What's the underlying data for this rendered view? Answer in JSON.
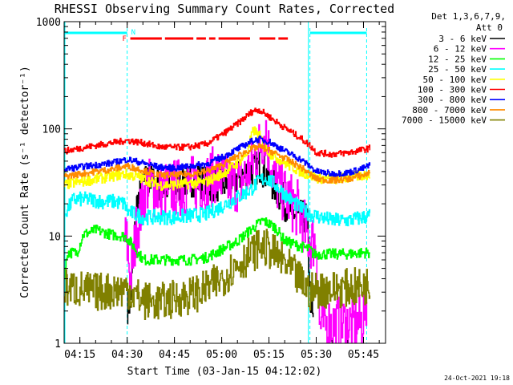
{
  "chart_data": {
    "type": "line",
    "title": "RHESSI Observing Summary Count Rates, Corrected",
    "xlabel": "Start Time (03-Jan-15 04:12:02)",
    "ylabel": "Corrected Count Rate (s⁻¹ detector⁻¹)",
    "y_scale": "log",
    "ylim": [
      1,
      1000
    ],
    "xlim": [
      "04:10",
      "05:52"
    ],
    "x_ticks": [
      "04:15",
      "04:30",
      "04:45",
      "05:00",
      "05:15",
      "05:30",
      "05:45"
    ],
    "y_ticks": [
      "1",
      "10",
      "100",
      "1000"
    ],
    "legend_header": [
      "Det 1,3,6,7,9,",
      "Att 0"
    ],
    "legend_position": "right-outside",
    "footer_date": "24-Oct-2021 19:18",
    "flags": {
      "night_label": "N",
      "flare_label": "F",
      "night_color": "#00ffff",
      "flare_color": "#ff0000",
      "night_intervals": [
        [
          "04:10",
          "04:30"
        ],
        [
          "05:28",
          "05:46"
        ]
      ],
      "night_boundaries": [
        "04:30",
        "05:28",
        "05:46"
      ],
      "flare_segments": [
        [
          "04:31",
          "04:41"
        ],
        [
          "04:42",
          "04:51"
        ],
        [
          "04:52",
          "04:55"
        ],
        [
          "04:56",
          "04:58"
        ],
        [
          "04:59",
          "05:09"
        ],
        [
          "05:12",
          "05:17"
        ],
        [
          "05:18",
          "05:21"
        ]
      ]
    },
    "series": [
      {
        "name": "3 - 6 keV",
        "color": "#000000",
        "noise": 0.16,
        "points": [
          [
            "04:30",
            2.2
          ],
          [
            "04:31",
            2.5
          ],
          [
            "04:33",
            20
          ],
          [
            "04:36",
            34
          ],
          [
            "04:40",
            30
          ],
          [
            "04:45",
            27
          ],
          [
            "04:48",
            32
          ],
          [
            "04:52",
            34
          ],
          [
            "04:56",
            30
          ],
          [
            "05:00",
            30
          ],
          [
            "05:03",
            32
          ],
          [
            "05:07",
            38
          ],
          [
            "05:10",
            42
          ],
          [
            "05:12",
            45
          ],
          [
            "05:14",
            38
          ],
          [
            "05:17",
            28
          ],
          [
            "05:20",
            20
          ],
          [
            "05:24",
            15
          ],
          [
            "05:27",
            15
          ],
          [
            "05:28",
            3
          ],
          [
            "05:29",
            1.5
          ]
        ]
      },
      {
        "name": "6 - 12 keV",
        "color": "#ff00ff",
        "noise": 0.28,
        "points": [
          [
            "04:29",
            10
          ],
          [
            "04:30",
            8
          ],
          [
            "04:31",
            4
          ],
          [
            "04:33",
            12
          ],
          [
            "04:36",
            30
          ],
          [
            "04:40",
            26
          ],
          [
            "04:45",
            28
          ],
          [
            "04:50",
            30
          ],
          [
            "04:55",
            32
          ],
          [
            "04:58",
            38
          ],
          [
            "05:02",
            30
          ],
          [
            "05:06",
            32
          ],
          [
            "05:09",
            42
          ],
          [
            "05:11",
            60
          ],
          [
            "05:13",
            80
          ],
          [
            "05:14",
            100
          ],
          [
            "05:15",
            55
          ],
          [
            "05:17",
            32
          ],
          [
            "05:20",
            24
          ],
          [
            "05:24",
            18
          ],
          [
            "05:27",
            10
          ],
          [
            "05:28",
            9
          ],
          [
            "05:30",
            9
          ],
          [
            "05:31",
            1.5
          ],
          [
            "05:44",
            1.5
          ],
          [
            "05:46",
            2.5
          ]
        ]
      },
      {
        "name": "12 - 25 keV",
        "color": "#00ff00",
        "noise": 0.05,
        "points": [
          [
            "04:10",
            4
          ],
          [
            "04:11",
            7
          ],
          [
            "04:14",
            7
          ],
          [
            "04:16",
            10.3
          ],
          [
            "04:20",
            11.4
          ],
          [
            "04:25",
            10.3
          ],
          [
            "04:29",
            10
          ],
          [
            "04:30",
            9.5
          ],
          [
            "04:32",
            8
          ],
          [
            "04:35",
            6
          ],
          [
            "04:45",
            6
          ],
          [
            "04:50",
            6
          ],
          [
            "04:55",
            6.3
          ],
          [
            "05:00",
            7.5
          ],
          [
            "05:05",
            9
          ],
          [
            "05:10",
            12
          ],
          [
            "05:13",
            14
          ],
          [
            "05:15",
            13
          ],
          [
            "05:17",
            12
          ],
          [
            "05:20",
            9
          ],
          [
            "05:25",
            8
          ],
          [
            "05:28",
            7.5
          ],
          [
            "05:29",
            6.8
          ],
          [
            "05:35",
            6.8
          ],
          [
            "05:40",
            6.8
          ],
          [
            "05:45",
            7
          ],
          [
            "05:47",
            7
          ]
        ]
      },
      {
        "name": "25 - 50 keV",
        "color": "#00ffff",
        "noise": 0.07,
        "points": [
          [
            "04:10",
            16
          ],
          [
            "04:13",
            22
          ],
          [
            "04:18",
            22
          ],
          [
            "04:22",
            21
          ],
          [
            "04:26",
            21
          ],
          [
            "04:29",
            20
          ],
          [
            "04:30",
            17
          ],
          [
            "04:35",
            15
          ],
          [
            "04:40",
            15
          ],
          [
            "04:45",
            15
          ],
          [
            "04:50",
            15.5
          ],
          [
            "04:55",
            16
          ],
          [
            "05:00",
            19
          ],
          [
            "05:05",
            23
          ],
          [
            "05:09",
            27
          ],
          [
            "05:12",
            33
          ],
          [
            "05:14",
            35
          ],
          [
            "05:17",
            30
          ],
          [
            "05:21",
            23
          ],
          [
            "05:25",
            18
          ],
          [
            "05:28",
            16
          ],
          [
            "05:35",
            14
          ],
          [
            "05:40",
            14
          ],
          [
            "05:45",
            15
          ],
          [
            "05:47",
            15.5
          ]
        ]
      },
      {
        "name": "50 - 100 keV",
        "color": "#ffff00",
        "noise": 0.05,
        "points": [
          [
            "04:10",
            30
          ],
          [
            "04:15",
            32
          ],
          [
            "04:20",
            34
          ],
          [
            "04:25",
            36
          ],
          [
            "04:29",
            38
          ],
          [
            "04:33",
            36
          ],
          [
            "04:40",
            30
          ],
          [
            "04:45",
            30
          ],
          [
            "04:50",
            31
          ],
          [
            "04:55",
            32
          ],
          [
            "05:00",
            38
          ],
          [
            "05:05",
            48
          ],
          [
            "05:08",
            60
          ],
          [
            "05:10",
            98
          ],
          [
            "05:12",
            85
          ],
          [
            "05:15",
            60
          ],
          [
            "05:20",
            48
          ],
          [
            "05:25",
            40
          ],
          [
            "05:30",
            35
          ],
          [
            "05:35",
            34
          ],
          [
            "05:40",
            35
          ],
          [
            "05:45",
            37
          ],
          [
            "05:47",
            38
          ]
        ]
      },
      {
        "name": "100 - 300 keV",
        "color": "#ff0000",
        "noise": 0.03,
        "points": [
          [
            "04:10",
            62
          ],
          [
            "04:15",
            66
          ],
          [
            "04:20",
            70
          ],
          [
            "04:25",
            74
          ],
          [
            "04:30",
            78
          ],
          [
            "04:35",
            74
          ],
          [
            "04:40",
            68
          ],
          [
            "04:45",
            67
          ],
          [
            "04:50",
            68
          ],
          [
            "04:55",
            72
          ],
          [
            "05:00",
            88
          ],
          [
            "05:05",
            112
          ],
          [
            "05:10",
            148
          ],
          [
            "05:12",
            150
          ],
          [
            "05:15",
            130
          ],
          [
            "05:20",
            102
          ],
          [
            "05:25",
            82
          ],
          [
            "05:28",
            70
          ],
          [
            "05:30",
            60
          ],
          [
            "05:35",
            58
          ],
          [
            "05:40",
            60
          ],
          [
            "05:45",
            64
          ],
          [
            "05:47",
            66
          ]
        ]
      },
      {
        "name": "300 - 800 keV",
        "color": "#0000ff",
        "noise": 0.03,
        "points": [
          [
            "04:10",
            42
          ],
          [
            "04:15",
            44
          ],
          [
            "04:20",
            46
          ],
          [
            "04:25",
            48
          ],
          [
            "04:30",
            52
          ],
          [
            "04:35",
            48
          ],
          [
            "04:40",
            44
          ],
          [
            "04:45",
            43
          ],
          [
            "04:50",
            45
          ],
          [
            "04:55",
            47
          ],
          [
            "05:00",
            54
          ],
          [
            "05:05",
            65
          ],
          [
            "05:10",
            78
          ],
          [
            "05:12",
            80
          ],
          [
            "05:15",
            76
          ],
          [
            "05:20",
            62
          ],
          [
            "05:25",
            52
          ],
          [
            "05:30",
            40
          ],
          [
            "05:35",
            38
          ],
          [
            "05:40",
            39
          ],
          [
            "05:45",
            43
          ],
          [
            "05:47",
            46
          ]
        ]
      },
      {
        "name": "800 - 7000 keV",
        "color": "#ff8c00",
        "noise": 0.03,
        "points": [
          [
            "04:10",
            36
          ],
          [
            "04:15",
            38
          ],
          [
            "04:20",
            40
          ],
          [
            "04:25",
            42
          ],
          [
            "04:30",
            45
          ],
          [
            "04:35",
            41
          ],
          [
            "04:40",
            37
          ],
          [
            "04:45",
            37
          ],
          [
            "04:50",
            38
          ],
          [
            "04:55",
            40
          ],
          [
            "05:00",
            46
          ],
          [
            "05:05",
            56
          ],
          [
            "05:10",
            66
          ],
          [
            "05:12",
            68
          ],
          [
            "05:15",
            63
          ],
          [
            "05:20",
            53
          ],
          [
            "05:25",
            44
          ],
          [
            "05:30",
            34
          ],
          [
            "05:35",
            33
          ],
          [
            "05:40",
            34
          ],
          [
            "05:45",
            37
          ],
          [
            "05:47",
            39
          ]
        ]
      },
      {
        "name": "7000 - 15000 keV",
        "color": "#808000",
        "noise": 0.18,
        "points": [
          [
            "04:10",
            3.3
          ],
          [
            "04:15",
            3.2
          ],
          [
            "04:20",
            3.0
          ],
          [
            "04:25",
            3.1
          ],
          [
            "04:30",
            3.2
          ],
          [
            "04:35",
            2.5
          ],
          [
            "04:40",
            2.4
          ],
          [
            "04:45",
            2.6
          ],
          [
            "04:50",
            2.8
          ],
          [
            "04:55",
            3.2
          ],
          [
            "05:00",
            4.0
          ],
          [
            "05:05",
            5.5
          ],
          [
            "05:10",
            7.0
          ],
          [
            "05:12",
            8.0
          ],
          [
            "05:15",
            7.5
          ],
          [
            "05:20",
            5.5
          ],
          [
            "05:25",
            3.8
          ],
          [
            "05:28",
            3.0
          ],
          [
            "05:30",
            3.2
          ],
          [
            "05:35",
            3.2
          ],
          [
            "05:40",
            3.3
          ],
          [
            "05:45",
            3.4
          ],
          [
            "05:47",
            3.5
          ]
        ]
      }
    ]
  }
}
